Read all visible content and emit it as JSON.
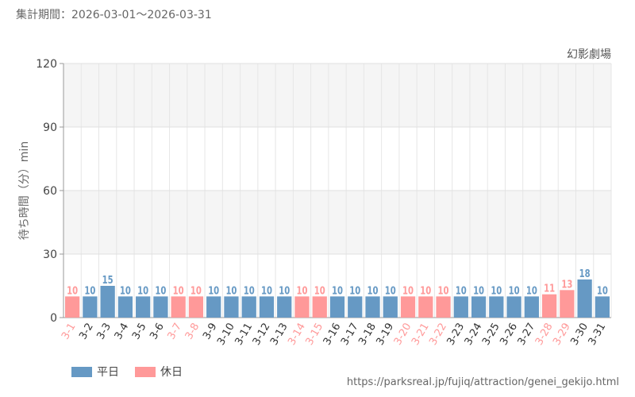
{
  "header": {
    "period": "集計期間：2026-03-01～2026-03-31"
  },
  "colors": {
    "weekday": "#6699c4",
    "holiday": "#ff9999"
  },
  "legend": [
    {
      "key": "weekday",
      "label": "平日"
    },
    {
      "key": "holiday",
      "label": "休日"
    }
  ],
  "footer": {
    "source": "https://parksreal.jp/fujiq/attraction/genei_gekijo.html"
  },
  "chart_data": {
    "type": "bar",
    "title": "幻影劇場",
    "ylabel": "待ち時間（分）min",
    "xlabel": "",
    "ylim": [
      0,
      120
    ],
    "yticks": [
      0,
      30,
      60,
      90,
      120
    ],
    "grid": true,
    "legend_position": "bottom-left",
    "categories": [
      "3-1",
      "3-2",
      "3-3",
      "3-4",
      "3-5",
      "3-6",
      "3-7",
      "3-8",
      "3-9",
      "3-10",
      "3-11",
      "3-12",
      "3-13",
      "3-14",
      "3-15",
      "3-16",
      "3-17",
      "3-18",
      "3-19",
      "3-20",
      "3-21",
      "3-22",
      "3-23",
      "3-24",
      "3-25",
      "3-26",
      "3-27",
      "3-28",
      "3-29",
      "3-30",
      "3-31"
    ],
    "values": [
      10,
      10,
      15,
      10,
      10,
      10,
      10,
      10,
      10,
      10,
      10,
      10,
      10,
      10,
      10,
      10,
      10,
      10,
      10,
      10,
      10,
      10,
      10,
      10,
      10,
      10,
      10,
      11,
      13,
      18,
      10
    ],
    "day_type": [
      "holiday",
      "weekday",
      "weekday",
      "weekday",
      "weekday",
      "weekday",
      "holiday",
      "holiday",
      "weekday",
      "weekday",
      "weekday",
      "weekday",
      "weekday",
      "holiday",
      "holiday",
      "weekday",
      "weekday",
      "weekday",
      "weekday",
      "holiday",
      "holiday",
      "holiday",
      "weekday",
      "weekday",
      "weekday",
      "weekday",
      "weekday",
      "holiday",
      "holiday",
      "weekday",
      "weekday"
    ]
  }
}
